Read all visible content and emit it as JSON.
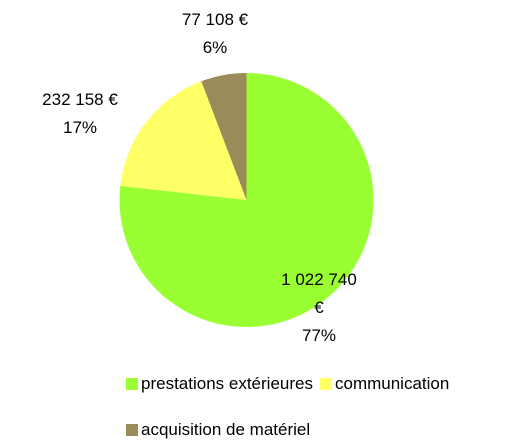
{
  "chart_data": {
    "type": "pie",
    "categories": [
      "prestations extérieures",
      "communication",
      "acquisition de matériel"
    ],
    "values": [
      1022740,
      232158,
      77108
    ],
    "value_labels": [
      "1 022 740 €",
      "232 158 €",
      "77 108 €"
    ],
    "percent_labels": [
      "77%",
      "17%",
      "6%"
    ],
    "colors": [
      "#99ff33",
      "#ffff66",
      "#9b8a5a"
    ],
    "legend": "bottom"
  }
}
